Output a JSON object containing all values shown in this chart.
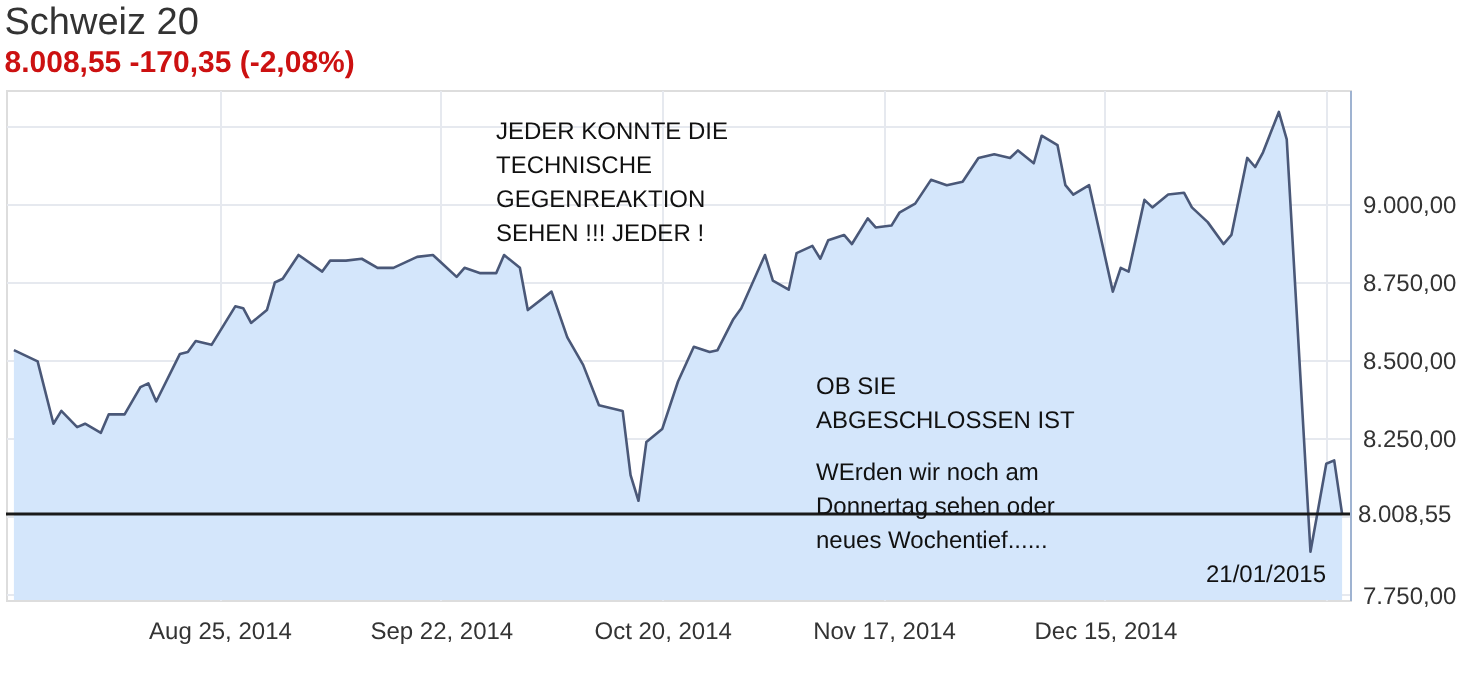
{
  "chart_data": {
    "type": "area",
    "title": "Schweiz 20",
    "subtitle": "8.008,55  -170,35  (-2,08%)",
    "x": [
      "2014-07-30",
      "2014-08-02",
      "2014-08-04",
      "2014-08-05",
      "2014-08-07",
      "2014-08-08",
      "2014-08-10",
      "2014-08-11",
      "2014-08-13",
      "2014-08-15",
      "2014-08-16",
      "2014-08-17",
      "2014-08-20",
      "2014-08-21",
      "2014-08-22",
      "2014-08-24",
      "2014-08-27",
      "2014-08-28",
      "2014-08-29",
      "2014-08-31",
      "2014-09-01",
      "2014-09-02",
      "2014-09-04",
      "2014-09-07",
      "2014-09-08",
      "2014-09-10",
      "2014-09-12",
      "2014-09-14",
      "2014-09-16",
      "2014-09-19",
      "2014-09-21",
      "2014-09-22",
      "2014-09-24",
      "2014-09-25",
      "2014-09-27",
      "2014-09-29",
      "2014-09-30",
      "2014-10-02",
      "2014-10-03",
      "2014-10-06",
      "2014-10-08",
      "2014-10-10",
      "2014-10-12",
      "2014-10-15",
      "2014-10-16",
      "2014-10-17",
      "2014-10-18",
      "2014-10-20",
      "2014-10-22",
      "2014-10-24",
      "2014-10-26",
      "2014-10-27",
      "2014-10-29",
      "2014-10-30",
      "2014-11-02",
      "2014-11-03",
      "2014-11-05",
      "2014-11-06",
      "2014-11-08",
      "2014-11-09",
      "2014-11-10",
      "2014-11-12",
      "2014-11-13",
      "2014-11-15",
      "2014-11-16",
      "2014-11-18",
      "2014-11-19",
      "2014-11-21",
      "2014-11-23",
      "2014-11-25",
      "2014-11-27",
      "2014-11-29",
      "2014-12-01",
      "2014-12-03",
      "2014-12-04",
      "2014-12-06",
      "2014-12-07",
      "2014-12-09",
      "2014-12-10",
      "2014-12-11",
      "2014-12-13",
      "2014-12-16",
      "2014-12-17",
      "2014-12-18",
      "2014-12-20",
      "2014-12-21",
      "2014-12-23",
      "2014-12-25",
      "2014-12-26",
      "2014-12-28",
      "2014-12-30",
      "2014-12-31",
      "2015-01-02",
      "2015-01-03",
      "2015-01-04",
      "2015-01-06",
      "2015-01-07",
      "2015-01-10",
      "2015-01-12",
      "2015-01-13",
      "2015-01-14"
    ],
    "series": [
      {
        "color": "#4a5878",
        "values": [
          8532,
          8496,
          8297,
          8338,
          8286,
          8297,
          8268,
          8327,
          8327,
          8414,
          8426,
          8368,
          8520,
          8526,
          8561,
          8549,
          8672,
          8666,
          8619,
          8660,
          8748,
          8760,
          8836,
          8783,
          8818,
          8818,
          8824,
          8795,
          8795,
          8830,
          8836,
          8813,
          8766,
          8795,
          8778,
          8778,
          8836,
          8795,
          8660,
          8719,
          8573,
          8485,
          8356,
          8338,
          8133,
          8051,
          8239,
          8280,
          8432,
          8543,
          8526,
          8532,
          8631,
          8666,
          8836,
          8754,
          8725,
          8842,
          8865,
          8824,
          8883,
          8900,
          8871,
          8953,
          8924,
          8930,
          8971,
          9000,
          9076,
          9059,
          9070,
          9146,
          9158,
          9146,
          9170,
          9129,
          9217,
          9187,
          9059,
          9029,
          9059,
          8719,
          8795,
          8783,
          9012,
          8988,
          9029,
          9035,
          8988,
          8941,
          8871,
          8900,
          9146,
          9117,
          9164,
          9293,
          9205,
          7888,
          8169,
          8180,
          8009
        ]
      }
    ],
    "xlim": [
      "2014-07-29",
      "2015-01-15"
    ],
    "xticks": [
      {
        "value": "2014-08-25",
        "label": "Aug 25, 2014"
      },
      {
        "value": "2014-09-22",
        "label": "Sep 22, 2014"
      },
      {
        "value": "2014-10-20",
        "label": "Oct 20, 2014"
      },
      {
        "value": "2014-11-17",
        "label": "Nov 17, 2014"
      },
      {
        "value": "2014-12-15",
        "label": "Dec 15, 2014"
      },
      {
        "value": "2015-01-12",
        "label": null
      }
    ],
    "ylim": [
      7734,
      9363
    ],
    "yticks": [
      {
        "value": 7750,
        "label": "7.750,00"
      },
      {
        "value": 8000,
        "label": null
      },
      {
        "value": 8250,
        "label": "8.250,00"
      },
      {
        "value": 8500,
        "label": "8.500,00"
      },
      {
        "value": 8750,
        "label": "8.750,00"
      },
      {
        "value": 9000,
        "label": "9.000,00"
      },
      {
        "value": 9250,
        "label": null
      }
    ],
    "grid": true,
    "ref_lines": [
      {
        "axis": "y",
        "value": 8008.55,
        "label": "8.008,55",
        "color": "#1a1a1a"
      }
    ],
    "annotations": [
      "JEDER KONNTE DIE\nTECHNISCHE\nGEGENREAKTION\nSEHEN !!! JEDER !",
      "OB  SIE\nABGESCHLOSSEN IST",
      "WErden wir noch am\nDonnertag sehen oder\nneues Wochentief......",
      "21/01/2015"
    ]
  }
}
